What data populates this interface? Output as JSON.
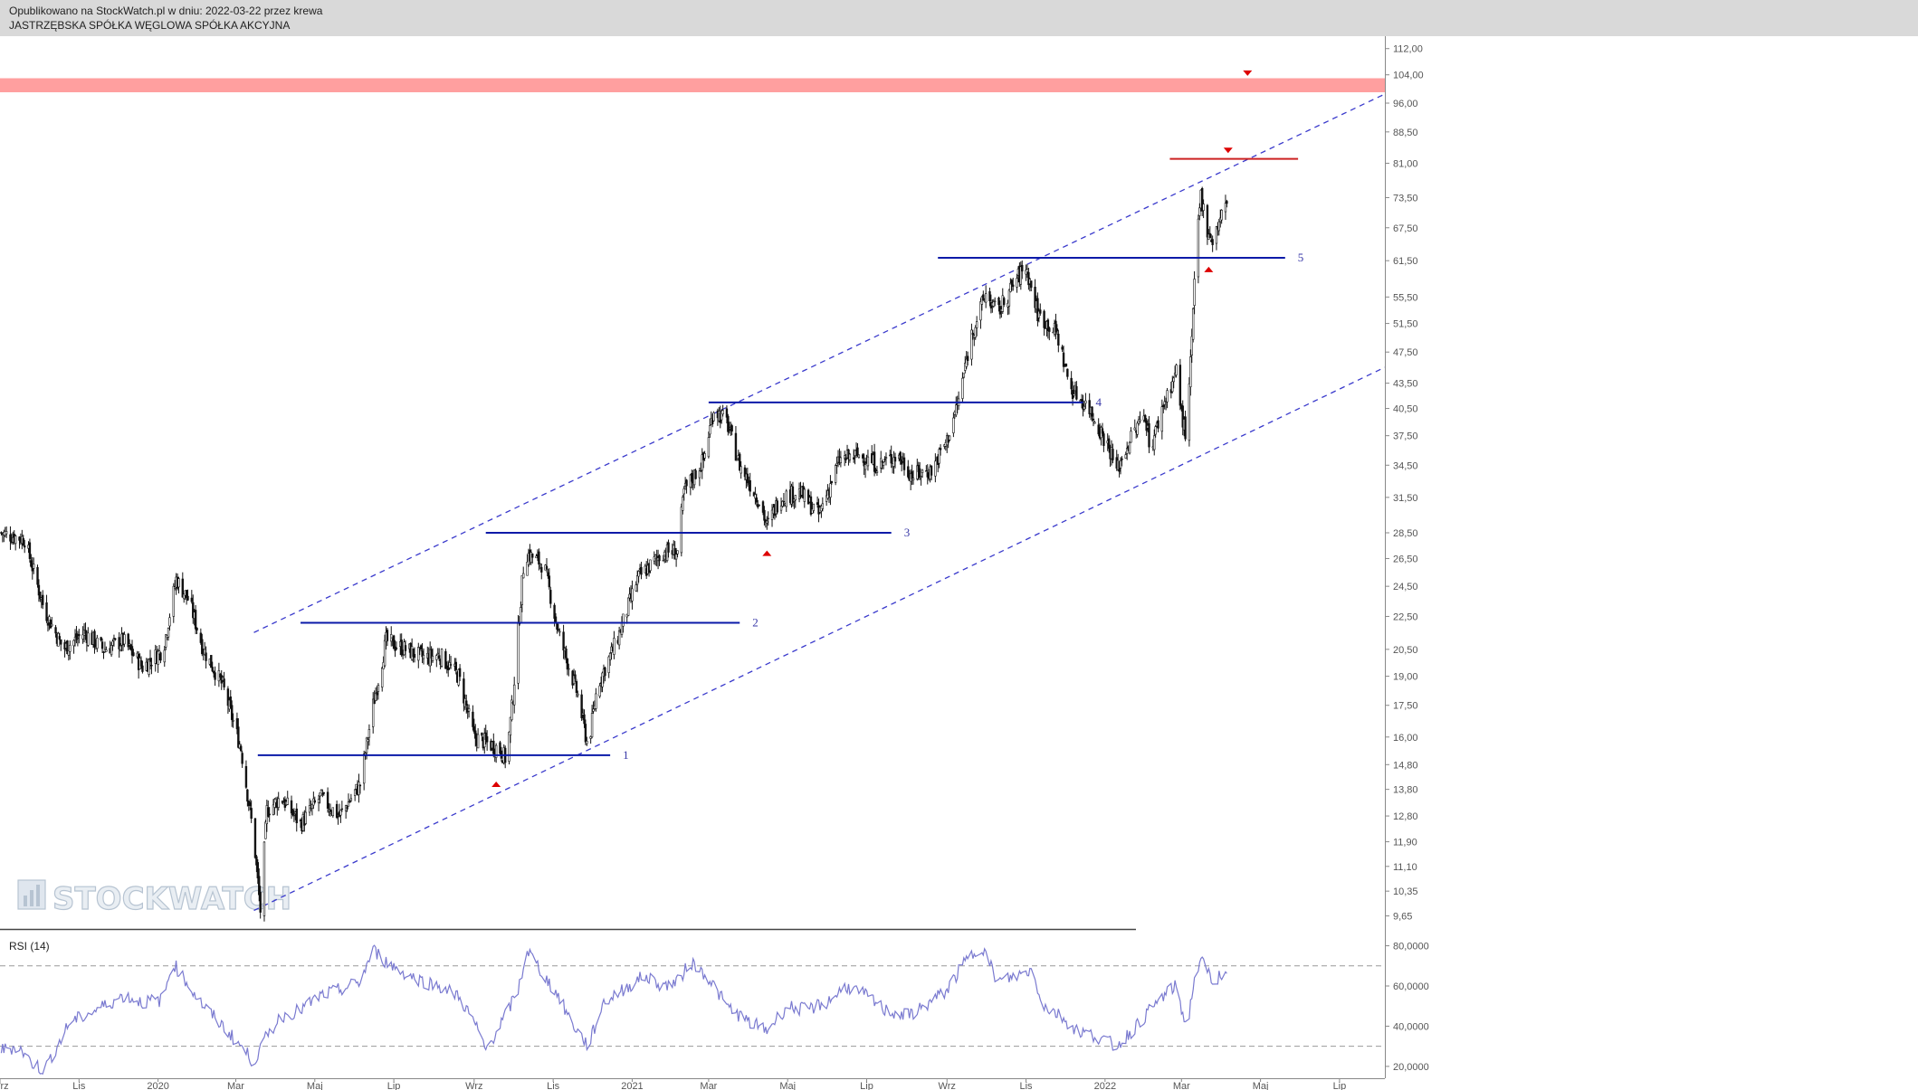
{
  "header": {
    "published": "Opublikowano na StockWatch.pl w dniu: 2022-03-22 przez krewa",
    "company": "JASTRZĘBSKA SPÓŁKA WĘGLOWA SPÓŁKA AKCYJNA"
  },
  "watermark": "STOCKWATCH",
  "colors": {
    "candle": "#111111",
    "level_line": "#0a1aa8",
    "channel": "#3a3acc",
    "resistance_zone": "#ff9f9f",
    "resistance_line": "#cc2222",
    "marker": "#dd0000",
    "rsi_line": "#7a7ad0"
  },
  "chart_data": [
    {
      "type": "candlestick",
      "scale": "log",
      "y_ticks": [
        "9,65",
        "10,35",
        "11,10",
        "11,90",
        "12,80",
        "13,80",
        "14,80",
        "16,00",
        "17,50",
        "19,00",
        "20,50",
        "22,50",
        "24,50",
        "26,50",
        "28,50",
        "31,50",
        "34,50",
        "37,50",
        "40,50",
        "43,50",
        "47,50",
        "51,50",
        "55,50",
        "61,50",
        "67,50",
        "73,50",
        "81,00",
        "88,50",
        "96,00",
        "104,00",
        "112,00"
      ],
      "y_tick_values": [
        9.65,
        10.35,
        11.1,
        11.9,
        12.8,
        13.8,
        14.8,
        16,
        17.5,
        19,
        20.5,
        22.5,
        24.5,
        26.5,
        28.5,
        31.5,
        34.5,
        37.5,
        40.5,
        43.5,
        47.5,
        51.5,
        55.5,
        61.5,
        67.5,
        73.5,
        81,
        88.5,
        96,
        104,
        112
      ],
      "ylim": [
        9.3,
        116
      ],
      "x_labels": [
        "Wrz",
        "Lis",
        "2020",
        "Mar",
        "Maj",
        "Lip",
        "Wrz",
        "Lis",
        "2021",
        "Mar",
        "Maj",
        "Lip",
        "Wrz",
        "Lis",
        "2022",
        "Mar",
        "Maj",
        "Lip"
      ],
      "x_label_dates": [
        "2019-09",
        "2019-11",
        "2020-01",
        "2020-03",
        "2020-05",
        "2020-07",
        "2020-09",
        "2020-11",
        "2021-01",
        "2021-03",
        "2021-05",
        "2021-07",
        "2021-09",
        "2021-11",
        "2022-01",
        "2022-03",
        "2022-05",
        "2022-07"
      ],
      "xlim": [
        "2019-09-01",
        "2022-08-05"
      ],
      "price_path": [
        [
          "2019-09-01",
          28.5
        ],
        [
          "2019-09-20",
          28.0
        ],
        [
          "2019-10-05",
          23.0
        ],
        [
          "2019-10-20",
          20.5
        ],
        [
          "2019-11-05",
          21.5
        ],
        [
          "2019-11-20",
          20.5
        ],
        [
          "2019-12-05",
          21.0
        ],
        [
          "2019-12-20",
          19.5
        ],
        [
          "2020-01-05",
          20.5
        ],
        [
          "2020-01-15",
          25.0
        ],
        [
          "2020-01-25",
          23.5
        ],
        [
          "2020-02-05",
          20.5
        ],
        [
          "2020-02-20",
          18.5
        ],
        [
          "2020-03-05",
          15.5
        ],
        [
          "2020-03-15",
          12.0
        ],
        [
          "2020-03-20",
          9.8
        ],
        [
          "2020-03-25",
          13.0
        ],
        [
          "2020-04-05",
          13.5
        ],
        [
          "2020-04-20",
          12.5
        ],
        [
          "2020-05-05",
          13.5
        ],
        [
          "2020-05-20",
          12.8
        ],
        [
          "2020-06-05",
          14.0
        ],
        [
          "2020-06-15",
          17.5
        ],
        [
          "2020-06-25",
          21.0
        ],
        [
          "2020-07-10",
          20.5
        ],
        [
          "2020-07-25",
          20.0
        ],
        [
          "2020-08-05",
          20.2
        ],
        [
          "2020-08-20",
          19.0
        ],
        [
          "2020-09-01",
          16.0
        ],
        [
          "2020-09-20",
          15.5
        ],
        [
          "2020-09-26",
          15.0
        ],
        [
          "2020-10-01",
          18.0
        ],
        [
          "2020-10-10",
          27.0
        ],
        [
          "2020-10-25",
          26.0
        ],
        [
          "2020-11-05",
          21.5
        ],
        [
          "2020-11-20",
          18.0
        ],
        [
          "2020-11-28",
          15.5
        ],
        [
          "2020-12-05",
          18.5
        ],
        [
          "2020-12-20",
          21.0
        ],
        [
          "2021-01-05",
          25.0
        ],
        [
          "2021-01-25",
          27.0
        ],
        [
          "2021-02-05",
          27.0
        ],
        [
          "2021-02-10",
          32.0
        ],
        [
          "2021-02-25",
          35.0
        ],
        [
          "2021-03-05",
          40.5
        ],
        [
          "2021-03-15",
          39.0
        ],
        [
          "2021-03-25",
          34.5
        ],
        [
          "2021-04-10",
          31.0
        ],
        [
          "2021-04-15",
          29.0
        ],
        [
          "2021-04-25",
          31.5
        ],
        [
          "2021-05-10",
          32.0
        ],
        [
          "2021-05-25",
          30.0
        ],
        [
          "2021-06-10",
          35.0
        ],
        [
          "2021-06-25",
          35.5
        ],
        [
          "2021-07-10",
          34.5
        ],
        [
          "2021-07-25",
          35.5
        ],
        [
          "2021-08-05",
          33.5
        ],
        [
          "2021-08-20",
          34.0
        ],
        [
          "2021-09-01",
          37.0
        ],
        [
          "2021-09-10",
          41.5
        ],
        [
          "2021-09-20",
          50.0
        ],
        [
          "2021-10-01",
          56.0
        ],
        [
          "2021-10-10",
          53.0
        ],
        [
          "2021-10-25",
          58.5
        ],
        [
          "2021-11-01",
          60.5
        ],
        [
          "2021-11-10",
          53.0
        ],
        [
          "2021-11-25",
          50.0
        ],
        [
          "2021-12-05",
          43.0
        ],
        [
          "2021-12-20",
          40.5
        ],
        [
          "2022-01-05",
          36.0
        ],
        [
          "2022-01-10",
          34.0
        ],
        [
          "2022-01-20",
          37.0
        ],
        [
          "2022-02-01",
          40.0
        ],
        [
          "2022-02-05",
          36.0
        ],
        [
          "2022-02-15",
          41.0
        ],
        [
          "2022-02-25",
          45.0
        ],
        [
          "2022-03-01",
          40.0
        ],
        [
          "2022-03-05",
          37.0
        ],
        [
          "2022-03-10",
          53.0
        ],
        [
          "2022-03-13",
          66.0
        ],
        [
          "2022-03-16",
          74.0
        ],
        [
          "2022-03-20",
          68.0
        ],
        [
          "2022-03-25",
          65.0
        ],
        [
          "2022-04-01",
          70.0
        ],
        [
          "2022-04-05",
          72.0
        ]
      ],
      "support_levels": [
        {
          "label": "1",
          "price": 15.2,
          "from": "2020-03-18",
          "to": "2020-12-15"
        },
        {
          "label": "2",
          "price": 22.1,
          "from": "2020-04-20",
          "to": "2021-03-25"
        },
        {
          "label": "3",
          "price": 28.5,
          "from": "2020-09-10",
          "to": "2021-07-20"
        },
        {
          "label": "4",
          "price": 41.2,
          "from": "2021-03-01",
          "to": "2021-12-15"
        },
        {
          "label": "5",
          "price": 62.0,
          "from": "2021-08-25",
          "to": "2022-05-20"
        }
      ],
      "resistance_line": {
        "price": 82.0,
        "from": "2022-02-20",
        "to": "2022-05-30"
      },
      "resistance_zone": [
        99.0,
        103.0
      ],
      "channel": {
        "upper": [
          [
            "2020-03-15",
            21.5
          ],
          [
            "2022-08-05",
            98.5
          ]
        ],
        "lower": [
          [
            "2020-03-15",
            9.8
          ],
          [
            "2022-08-05",
            45.5
          ]
        ]
      },
      "markers": [
        {
          "dir": "up",
          "date": "2020-09-18",
          "price": 14.0
        },
        {
          "dir": "up",
          "date": "2021-04-15",
          "price": 26.9
        },
        {
          "dir": "up",
          "date": "2022-03-22",
          "price": 60.0
        },
        {
          "dir": "down",
          "date": "2022-04-06",
          "price": 84.0
        },
        {
          "dir": "down",
          "date": "2022-04-21",
          "price": 104.5
        }
      ]
    },
    {
      "type": "line",
      "title": "RSI (14)",
      "y_ticks": [
        "20,0000",
        "40,0000",
        "60,0000",
        "80,0000"
      ],
      "y_tick_values": [
        20,
        40,
        60,
        80
      ],
      "ylim": [
        15,
        87
      ],
      "ref_lines": [
        70,
        30
      ],
      "path": [
        [
          "2019-09-01",
          28
        ],
        [
          "2019-09-15",
          30
        ],
        [
          "2019-09-25",
          22
        ],
        [
          "2019-10-05",
          18
        ],
        [
          "2019-10-15",
          30
        ],
        [
          "2019-10-25",
          42
        ],
        [
          "2019-11-05",
          45
        ],
        [
          "2019-11-20",
          50
        ],
        [
          "2019-12-05",
          55
        ],
        [
          "2019-12-20",
          52
        ],
        [
          "2020-01-05",
          53
        ],
        [
          "2020-01-12",
          72
        ],
        [
          "2020-01-25",
          60
        ],
        [
          "2020-02-05",
          50
        ],
        [
          "2020-02-20",
          40
        ],
        [
          "2020-03-05",
          30
        ],
        [
          "2020-03-15",
          22
        ],
        [
          "2020-03-25",
          35
        ],
        [
          "2020-04-05",
          45
        ],
        [
          "2020-04-20",
          48
        ],
        [
          "2020-05-05",
          55
        ],
        [
          "2020-05-20",
          58
        ],
        [
          "2020-06-05",
          62
        ],
        [
          "2020-06-15",
          78
        ],
        [
          "2020-06-25",
          72
        ],
        [
          "2020-07-10",
          66
        ],
        [
          "2020-07-25",
          62
        ],
        [
          "2020-08-05",
          60
        ],
        [
          "2020-08-20",
          55
        ],
        [
          "2020-09-01",
          42
        ],
        [
          "2020-09-10",
          28
        ],
        [
          "2020-09-25",
          45
        ],
        [
          "2020-10-05",
          58
        ],
        [
          "2020-10-12",
          78
        ],
        [
          "2020-10-25",
          65
        ],
        [
          "2020-11-05",
          55
        ],
        [
          "2020-11-15",
          42
        ],
        [
          "2020-11-28",
          30
        ],
        [
          "2020-12-10",
          52
        ],
        [
          "2020-12-25",
          58
        ],
        [
          "2021-01-10",
          65
        ],
        [
          "2021-01-25",
          60
        ],
        [
          "2021-02-05",
          62
        ],
        [
          "2021-02-15",
          72
        ],
        [
          "2021-02-28",
          65
        ],
        [
          "2021-03-15",
          50
        ],
        [
          "2021-04-01",
          42
        ],
        [
          "2021-04-15",
          38
        ],
        [
          "2021-05-01",
          50
        ],
        [
          "2021-05-15",
          48
        ],
        [
          "2021-06-01",
          52
        ],
        [
          "2021-06-15",
          60
        ],
        [
          "2021-07-01",
          55
        ],
        [
          "2021-07-15",
          48
        ],
        [
          "2021-08-01",
          45
        ],
        [
          "2021-08-15",
          50
        ],
        [
          "2021-09-01",
          58
        ],
        [
          "2021-09-15",
          72
        ],
        [
          "2021-09-28",
          80
        ],
        [
          "2021-10-10",
          62
        ],
        [
          "2021-10-25",
          65
        ],
        [
          "2021-11-05",
          68
        ],
        [
          "2021-11-15",
          50
        ],
        [
          "2021-11-28",
          45
        ],
        [
          "2021-12-10",
          38
        ],
        [
          "2021-12-25",
          35
        ],
        [
          "2022-01-10",
          30
        ],
        [
          "2022-01-25",
          40
        ],
        [
          "2022-02-05",
          48
        ],
        [
          "2022-02-15",
          55
        ],
        [
          "2022-02-25",
          60
        ],
        [
          "2022-03-05",
          38
        ],
        [
          "2022-03-12",
          68
        ],
        [
          "2022-03-18",
          72
        ],
        [
          "2022-03-25",
          62
        ],
        [
          "2022-04-01",
          66
        ],
        [
          "2022-04-05",
          64
        ]
      ]
    }
  ]
}
